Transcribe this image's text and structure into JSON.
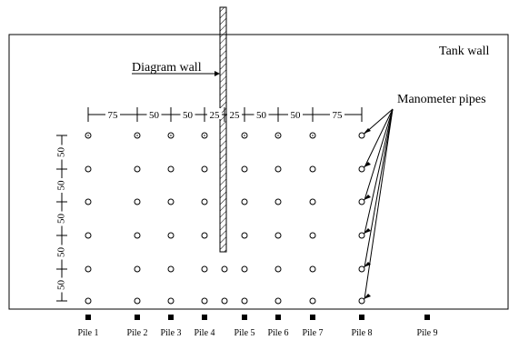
{
  "labels": {
    "tank_wall": "Tank wall",
    "diagram_wall": "Diagram wall",
    "manometer_pipes": "Manometer pipes"
  },
  "horizontal_dimensions": [
    "75",
    "50",
    "50",
    "25",
    "25",
    "50",
    "50",
    "75"
  ],
  "vertical_dimensions": [
    "50",
    "50",
    "50",
    "50",
    "50"
  ],
  "piles": [
    "Pile 1",
    "Pile 2",
    "Pile 3",
    "Pile 4",
    "Pile 5",
    "Pile 6",
    "Pile 7",
    "Pile 8",
    "Pile 9"
  ],
  "diagram": {
    "pipe_rows": 6,
    "grid_columns": 7,
    "extra_columns_bottom_rows": 2,
    "icons": {
      "pipe": "circle-marker",
      "pile": "square-marker"
    }
  }
}
